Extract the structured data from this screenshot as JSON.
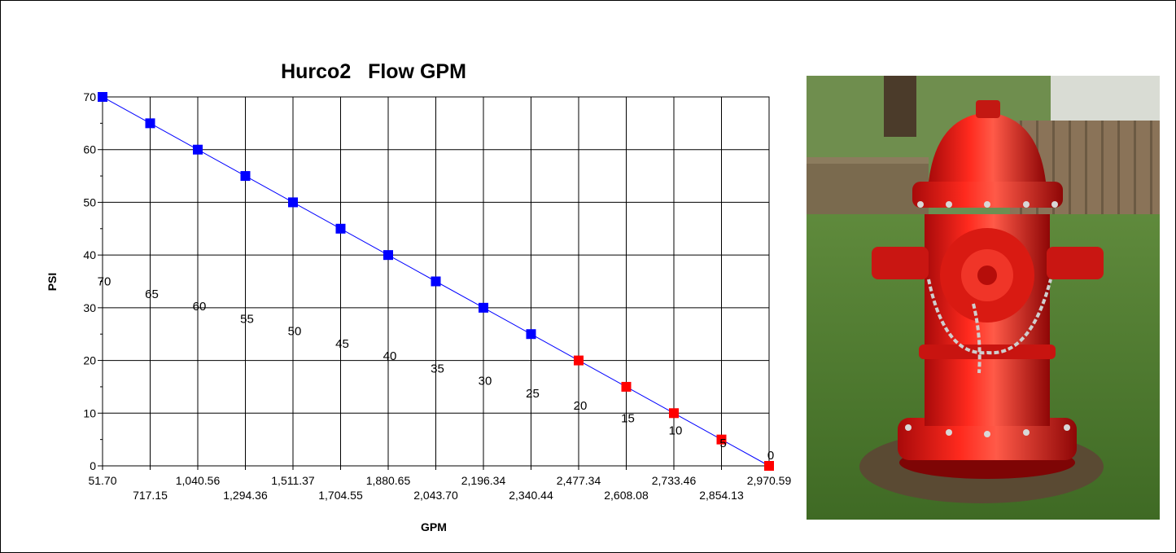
{
  "chart_data": {
    "type": "line",
    "title": "Hurco2   Flow GPM",
    "xlabel": "GPM",
    "ylabel": "PSI",
    "x_tick_labels": [
      "51.70",
      "717.15",
      "1,040.56",
      "1,294.36",
      "1,511.37",
      "1,704.55",
      "1,880.65",
      "2,043.70",
      "2,196.34",
      "2,340.44",
      "2,477.34",
      "2,608.08",
      "2,733.46",
      "2,854.13",
      "2,970.59"
    ],
    "y_ticks": [
      0,
      10,
      20,
      30,
      40,
      50,
      60,
      70
    ],
    "ylim": [
      0,
      70
    ],
    "grid": true,
    "series": [
      {
        "values": [
          70,
          65,
          60,
          55,
          50,
          45,
          40,
          35,
          30,
          25,
          20,
          15,
          10,
          5,
          0
        ],
        "point_labels": [
          "70",
          "65",
          "60",
          "55",
          "50",
          "45",
          "40",
          "35",
          "30",
          "25",
          "20",
          "15",
          "10",
          "5",
          "0"
        ],
        "point_colors": [
          "#0000ff",
          "#0000ff",
          "#0000ff",
          "#0000ff",
          "#0000ff",
          "#0000ff",
          "#0000ff",
          "#0000ff",
          "#0000ff",
          "#0000ff",
          "#ff0000",
          "#ff0000",
          "#ff0000",
          "#ff0000",
          "#ff0000"
        ],
        "line_color": "#0000ff"
      }
    ]
  },
  "photo": {
    "subject": "red-fire-hydrant-photo"
  }
}
